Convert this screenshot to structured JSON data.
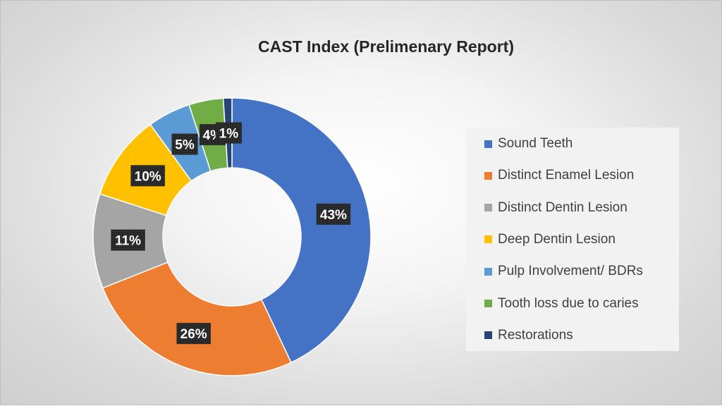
{
  "chart_data": {
    "type": "pie",
    "variant": "doughnut",
    "title": "CAST Index (Prelimenary Report)",
    "categories": [
      "Sound Teeth",
      "Distinct Enamel Lesion",
      "Distinct Dentin Lesion",
      "Deep Dentin Lesion",
      "Pulp Involvement/ BDRs",
      "Tooth loss due to caries",
      "Restorations"
    ],
    "values": [
      43,
      26,
      11,
      10,
      5,
      4,
      1
    ],
    "labels": [
      "43%",
      "26%",
      "11%",
      "10%",
      "5%",
      "4%",
      "1%"
    ],
    "colors": [
      "#4472c4",
      "#ed7d31",
      "#a5a5a5",
      "#ffc000",
      "#5b9bd5",
      "#70ad47",
      "#264478"
    ],
    "legend_position": "right"
  }
}
